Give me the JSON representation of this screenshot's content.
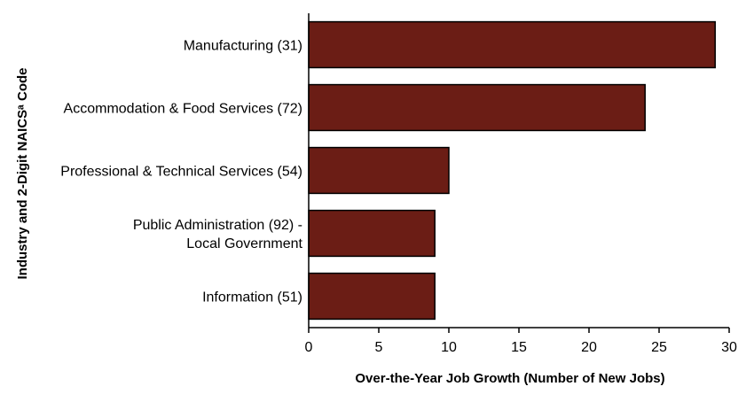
{
  "chart_data": {
    "type": "bar",
    "orientation": "horizontal",
    "categories": [
      "Manufacturing (31)",
      "Accommodation & Food Services (72)",
      "Professional & Technical Services (54)",
      "Public Administration (92) - Local Government",
      "Information (51)"
    ],
    "category_lines": [
      [
        "Manufacturing (31)"
      ],
      [
        "Accommodation & Food Services (72)"
      ],
      [
        "Professional & Technical Services (54)"
      ],
      [
        "Public Administration (92) -",
        "Local Government"
      ],
      [
        "Information (51)"
      ]
    ],
    "values": [
      29,
      24,
      10,
      9,
      9
    ],
    "xlabel": "Over-the-Year Job Growth (Number of New Jobs)",
    "ylabel": "Industry and 2-Digit NAICSᵃ Code",
    "xlim": [
      0,
      30
    ],
    "xticks": [
      0,
      5,
      10,
      15,
      20,
      25,
      30
    ],
    "grid": false,
    "bar_color": "#6b1d15",
    "bar_edge_color": "#000000"
  }
}
